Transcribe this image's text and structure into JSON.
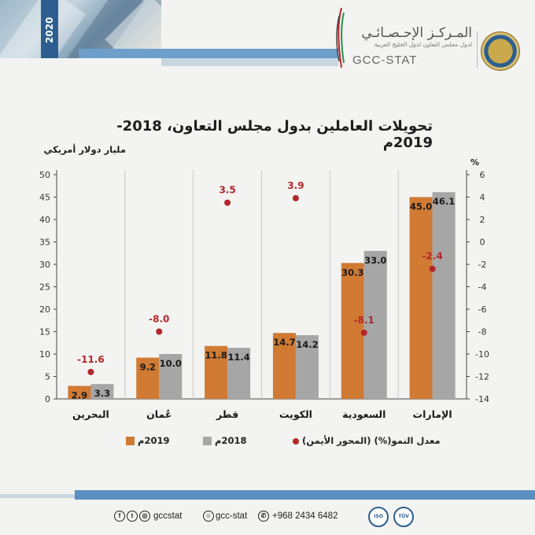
{
  "header": {
    "year": "2020",
    "logo_ar": "المـركـز الإحـصـائـي",
    "logo_sub": "لدول مجلس التعاون لدول الخليج العربية",
    "logo_en": "GCC-STAT"
  },
  "footer": {
    "phone": "+968 2434 6482",
    "website": "gcc-stat",
    "handle": "gccstat",
    "cert1": "TÜV",
    "cert2": "ISO"
  },
  "colors": {
    "series_2019": "#d07a33",
    "series_2018": "#a6a6a6",
    "growth": "#b3262a",
    "accent": "#2c5f8f"
  },
  "chart_data": {
    "type": "bar",
    "title": "تحويلات العاملين بدول مجلس التعاون،  2018- 2019م",
    "ylabel": "مليار دولار أمريكي",
    "y2label": "%",
    "categories": [
      "البحرين",
      "عُمان",
      "قطر",
      "الكويت",
      "السعودية",
      "الإمارات"
    ],
    "series": [
      {
        "name": "2019م",
        "values": [
          2.9,
          9.2,
          11.8,
          14.7,
          30.3,
          45.0
        ],
        "labels": [
          "2.9",
          "9.2",
          "11.8",
          "14.7",
          "30.3",
          "45.0"
        ]
      },
      {
        "name": "2018م",
        "values": [
          3.3,
          10.0,
          11.4,
          14.2,
          33.0,
          46.1
        ],
        "labels": [
          "3.3",
          "10.0",
          "11.4",
          "14.2",
          "33.0",
          "46.1"
        ]
      },
      {
        "name": "معدل النمو(%) (المحور الأيمن)",
        "axis": "right",
        "type": "scatter",
        "values": [
          -11.6,
          -8.0,
          3.5,
          3.9,
          -8.1,
          -2.4
        ],
        "labels": [
          "-11.6",
          "-8.0",
          "3.5",
          "3.9",
          "-8.1",
          "-2.4"
        ]
      }
    ],
    "ylim": [
      0,
      50
    ],
    "y_ticks": [
      "0",
      "5",
      "10",
      "15",
      "20",
      "25",
      "30",
      "35",
      "40",
      "45",
      "50"
    ],
    "y2lim": [
      -14,
      6
    ],
    "y2_ticks": [
      "-14",
      "-12",
      "-10",
      "-8",
      "-6",
      "-4",
      "-2",
      "0",
      "2",
      "4",
      "6"
    ],
    "grid": false,
    "legend_position": "bottom"
  }
}
